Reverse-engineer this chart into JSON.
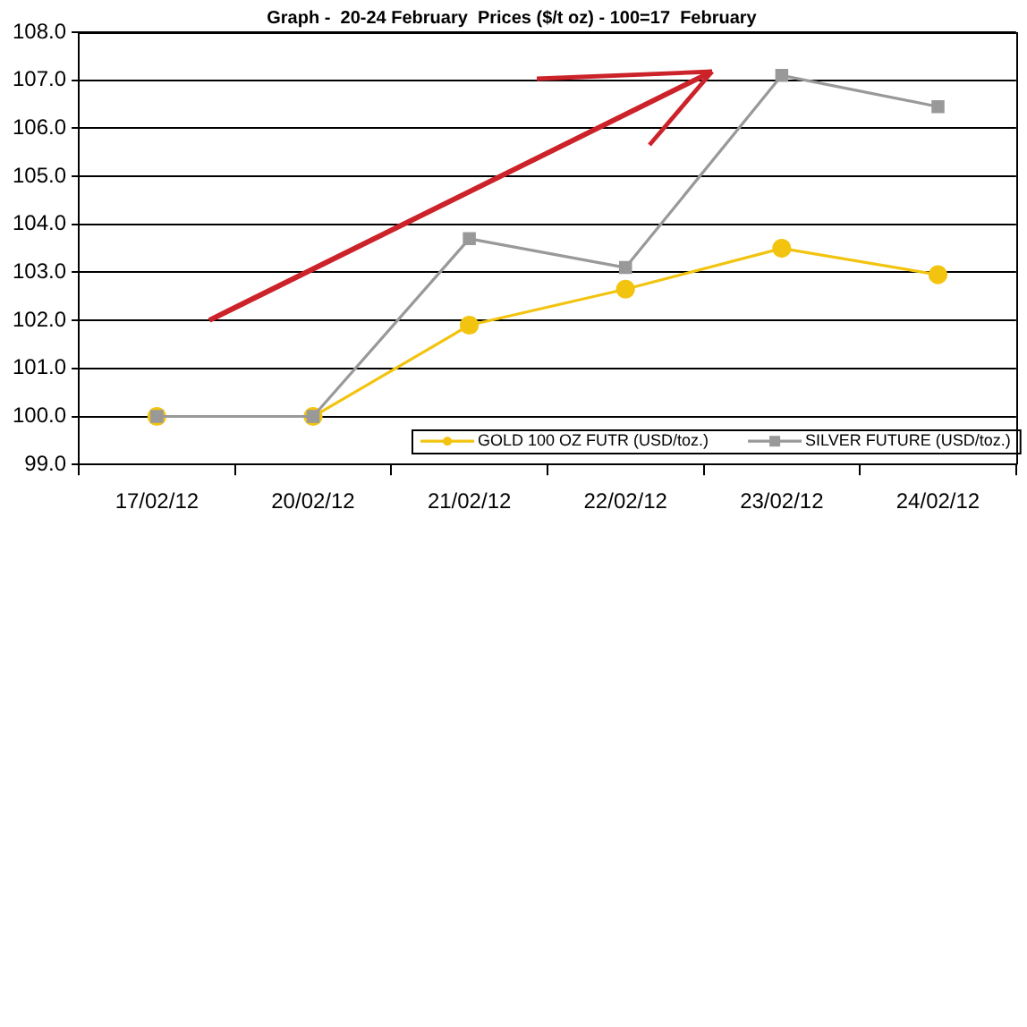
{
  "chart_data": {
    "type": "line",
    "title": "Graph -  20-24 February  Prices ($/t oz) - 100=17  February",
    "categories": [
      "17/02/12",
      "20/02/12",
      "21/02/12",
      "22/02/12",
      "23/02/12",
      "24/02/12"
    ],
    "series": [
      {
        "name": "GOLD 100 OZ FUTR (USD/toz.)",
        "color": "#f2c40f",
        "marker": "circle",
        "values": [
          100.0,
          100.0,
          101.9,
          102.65,
          103.5,
          102.95
        ]
      },
      {
        "name": "SILVER FUTURE (USD/toz.)",
        "color": "#999999",
        "marker": "square",
        "values": [
          100.0,
          100.0,
          103.7,
          103.1,
          107.1,
          106.45
        ]
      }
    ],
    "ylim": [
      99,
      108
    ],
    "yticks": [
      {
        "value": 99,
        "label": "99.0"
      },
      {
        "value": 100,
        "label": "100.0"
      },
      {
        "value": 101,
        "label": "101.0"
      },
      {
        "value": 102,
        "label": "102.0"
      },
      {
        "value": 103,
        "label": "103.0"
      },
      {
        "value": 104,
        "label": "104.0"
      },
      {
        "value": 105,
        "label": "105.0"
      },
      {
        "value": 106,
        "label": "106.0"
      },
      {
        "value": 107,
        "label": "107.0"
      },
      {
        "value": 108,
        "label": "108.0"
      }
    ],
    "grid": "y",
    "legend": "bottom right",
    "line_style": "solid"
  }
}
